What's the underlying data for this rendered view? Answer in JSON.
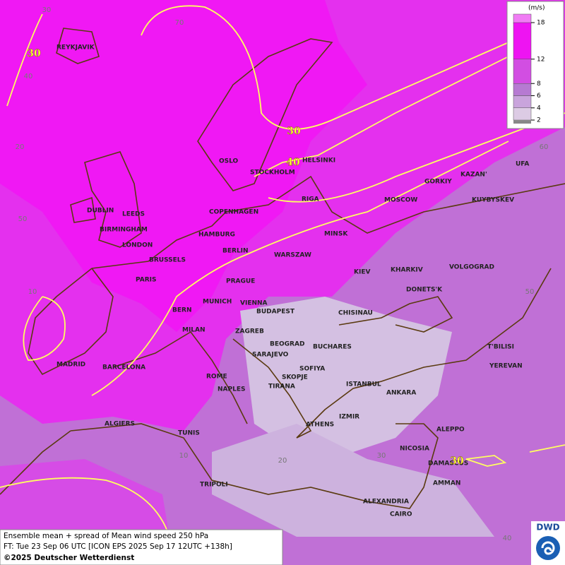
{
  "legend": {
    "unit": "(m/s)",
    "ticks": [
      2,
      4,
      6,
      8,
      12,
      18
    ],
    "colors": [
      "#dccbe4",
      "#c9a4dc",
      "#b67ad2",
      "#d24ee2",
      "#ee14f2"
    ]
  },
  "contour_labels": [
    "30",
    "30",
    "40",
    "30"
  ],
  "graticule_labels": [
    "30",
    "70",
    "40",
    "20",
    "50",
    "10",
    "60",
    "50",
    "10",
    "20",
    "30",
    "40"
  ],
  "cities": [
    "REYKJAVIK",
    "OSLO",
    "STOCKHOLM",
    "HELSINKI",
    "DUBLIN",
    "LEEDS",
    "BIRMINGHAM",
    "LONDON",
    "COPENHAGEN",
    "HAMBURG",
    "BERLIN",
    "RIGA",
    "MINSK",
    "MOSCOW",
    "GORKIY",
    "KAZAN'",
    "UFA",
    "KUYBYSKEV",
    "WARSZAW",
    "BRUSSELS",
    "PARIS",
    "PRAGUE",
    "KIEV",
    "KHARKIV",
    "VOLGOGRAD",
    "DONETS'K",
    "MUNICH",
    "VIENNA",
    "BERN",
    "BUDAPEST",
    "CHISINAU",
    "MILAN",
    "ZAGREB",
    "BEOGRAD",
    "BUCHARES",
    "T'BILISI",
    "SARAJEVO",
    "MADRID",
    "BARCELONA",
    "SOFIYA",
    "YEREVAN",
    "ROME",
    "SKOPJE",
    "TIRANA",
    "ISTANBUL",
    "NAPLES",
    "ANKARA",
    "IZMIR",
    "ATHENS",
    "ALGIERS",
    "ALEPPO",
    "TUNIS",
    "NICOSIA",
    "DAMASCUS",
    "TRIPOLI",
    "AMMAN",
    "ALEXANDRIA",
    "CAIRO"
  ],
  "footer": {
    "line1": "Ensemble mean + spread of Mean wind speed 250 hPa",
    "line2": "FT: Tue 23 Sep 06 UTC [ICON EPS 2025 Sep 17 12UTC +138h]",
    "line3": "©2025 Deutscher Wetterdienst"
  },
  "logo": "DWD"
}
